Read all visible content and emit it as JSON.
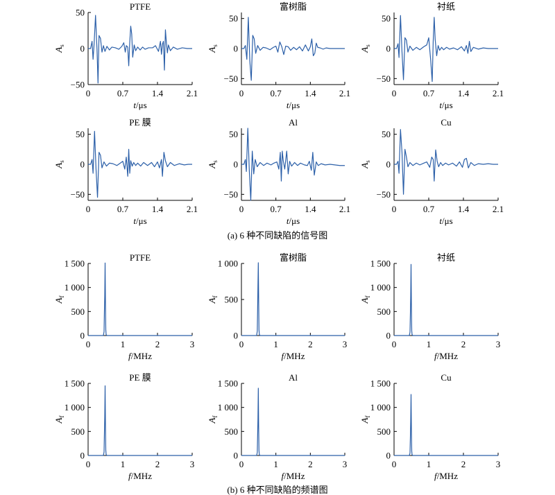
{
  "captions": {
    "time_domain": "(a) 6 种不同缺陷的信号图",
    "freq_domain": "(b) 6 种不同缺陷的频谱图"
  },
  "chart_data": [
    {
      "type": "line",
      "title": "PTFE",
      "xlabel_italic": "t",
      "xlabel_unit": "/μs",
      "ylabel_main": "A",
      "ylabel_sub": "s",
      "xlim": [
        0,
        2.1
      ],
      "ylim": [
        -50,
        50
      ],
      "xticks": [
        0,
        0.7,
        1.4,
        2.1
      ],
      "xtick_labels": [
        "0",
        "0.7",
        "1.4",
        "2.1"
      ],
      "yticks": [
        -50,
        0,
        50
      ],
      "ytick_labels": [
        "−50",
        "0",
        "50"
      ],
      "color": "#2b5fa8",
      "series": [
        {
          "x": [
            0,
            0.05,
            0.08,
            0.1,
            0.12,
            0.15,
            0.18,
            0.2,
            0.22,
            0.25,
            0.28,
            0.31,
            0.34,
            0.38,
            0.43,
            0.48,
            0.55,
            0.62,
            0.68,
            0.72,
            0.75,
            0.77,
            0.8,
            0.82,
            0.84,
            0.86,
            0.88,
            0.9,
            0.93,
            0.96,
            1.0,
            1.05,
            1.1,
            1.15,
            1.22,
            1.3,
            1.36,
            1.42,
            1.46,
            1.48,
            1.5,
            1.52,
            1.54,
            1.56,
            1.58,
            1.6,
            1.62,
            1.66,
            1.72,
            1.8,
            1.9,
            2.0,
            2.1
          ],
          "y": [
            0,
            0,
            10,
            -15,
            5,
            46,
            -2,
            -48,
            18,
            14,
            -5,
            4,
            -4,
            3,
            -2,
            2,
            1,
            -1,
            3,
            8,
            -5,
            4,
            2,
            -24,
            8,
            31,
            20,
            -12,
            5,
            -3,
            2,
            -2,
            2,
            -1,
            1,
            1,
            4,
            -4,
            10,
            -8,
            6,
            10,
            -30,
            26,
            8,
            -6,
            5,
            -3,
            2,
            -1,
            1,
            0,
            0
          ]
        }
      ]
    },
    {
      "type": "line",
      "title": "富树脂",
      "xlabel_italic": "t",
      "xlabel_unit": "/μs",
      "ylabel_main": "A",
      "ylabel_sub": "s",
      "xlim": [
        0,
        2.1
      ],
      "ylim": [
        -60,
        60
      ],
      "xticks": [
        0,
        0.7,
        1.4,
        2.1
      ],
      "xtick_labels": [
        "0",
        "0.7",
        "1.4",
        "2.1"
      ],
      "yticks": [
        -50,
        0,
        50
      ],
      "ytick_labels": [
        "−50",
        "0",
        "50"
      ],
      "color": "#2b5fa8",
      "series": [
        {
          "x": [
            0,
            0.05,
            0.08,
            0.11,
            0.14,
            0.17,
            0.2,
            0.23,
            0.26,
            0.29,
            0.33,
            0.38,
            0.44,
            0.5,
            0.58,
            0.65,
            0.7,
            0.74,
            0.78,
            0.82,
            0.86,
            0.9,
            0.95,
            1.0,
            1.06,
            1.12,
            1.18,
            1.24,
            1.3,
            1.36,
            1.4,
            1.43,
            1.46,
            1.49,
            1.52,
            1.55,
            1.6,
            1.66,
            1.72,
            1.8,
            1.9,
            2.0,
            2.1
          ],
          "y": [
            0,
            0,
            5,
            -18,
            52,
            -20,
            -53,
            22,
            16,
            -8,
            5,
            -3,
            2,
            1,
            -2,
            2,
            4,
            -6,
            11,
            3,
            -10,
            4,
            3,
            -3,
            2,
            -2,
            3,
            -4,
            6,
            -4,
            3,
            16,
            -12,
            -8,
            9,
            2,
            1,
            -1,
            1,
            0,
            0,
            0,
            0
          ]
        }
      ]
    },
    {
      "type": "line",
      "title": "衬纸",
      "xlabel_italic": "t",
      "xlabel_unit": "/μs",
      "ylabel_main": "A",
      "ylabel_sub": "s",
      "xlim": [
        0,
        2.1
      ],
      "ylim": [
        -60,
        60
      ],
      "xticks": [
        0,
        0.7,
        1.4,
        2.1
      ],
      "xtick_labels": [
        "0",
        "0.7",
        "1.4",
        "2.1"
      ],
      "yticks": [
        -50,
        0,
        50
      ],
      "ytick_labels": [
        "−50",
        "0",
        "50"
      ],
      "color": "#2b5fa8",
      "series": [
        {
          "x": [
            0,
            0.05,
            0.08,
            0.1,
            0.13,
            0.16,
            0.19,
            0.22,
            0.25,
            0.28,
            0.32,
            0.38,
            0.45,
            0.52,
            0.6,
            0.66,
            0.7,
            0.74,
            0.77,
            0.79,
            0.81,
            0.83,
            0.86,
            0.89,
            0.92,
            0.96,
            1.0,
            1.06,
            1.12,
            1.2,
            1.28,
            1.36,
            1.42,
            1.46,
            1.49,
            1.52,
            1.55,
            1.6,
            1.7,
            1.8,
            1.9,
            2.0,
            2.1
          ],
          "y": [
            0,
            0,
            8,
            -15,
            55,
            -5,
            -52,
            18,
            14,
            -6,
            4,
            -3,
            2,
            -2,
            3,
            6,
            18,
            -20,
            -55,
            12,
            52,
            15,
            -12,
            5,
            -3,
            2,
            -2,
            2,
            -1,
            1,
            -2,
            3,
            -4,
            5,
            -8,
            12,
            -5,
            2,
            -1,
            1,
            0,
            0,
            0
          ]
        }
      ]
    },
    {
      "type": "line",
      "title": "PE 膜",
      "xlabel_italic": "t",
      "xlabel_unit": "/μs",
      "ylabel_main": "A",
      "ylabel_sub": "s",
      "xlim": [
        0,
        2.1
      ],
      "ylim": [
        -60,
        60
      ],
      "xticks": [
        0,
        0.7,
        1.4,
        2.1
      ],
      "xtick_labels": [
        "0",
        "0.7",
        "1.4",
        "2.1"
      ],
      "yticks": [
        -50,
        0,
        50
      ],
      "ytick_labels": [
        "−50",
        "0",
        "50"
      ],
      "color": "#2b5fa8",
      "series": [
        {
          "x": [
            0,
            0.05,
            0.08,
            0.1,
            0.13,
            0.16,
            0.19,
            0.22,
            0.25,
            0.28,
            0.32,
            0.37,
            0.43,
            0.5,
            0.58,
            0.65,
            0.7,
            0.74,
            0.77,
            0.8,
            0.82,
            0.84,
            0.86,
            0.89,
            0.92,
            0.96,
            1.0,
            1.06,
            1.12,
            1.2,
            1.28,
            1.34,
            1.4,
            1.44,
            1.48,
            1.5,
            1.53,
            1.56,
            1.6,
            1.66,
            1.74,
            1.84,
            1.94,
            2.02,
            2.1
          ],
          "y": [
            0,
            0,
            8,
            -15,
            55,
            -8,
            -55,
            20,
            15,
            -6,
            4,
            -3,
            2,
            1,
            -2,
            2,
            5,
            -8,
            12,
            -20,
            25,
            -15,
            6,
            -3,
            3,
            -2,
            2,
            -3,
            3,
            -2,
            3,
            -4,
            4,
            -6,
            8,
            -20,
            20,
            6,
            -4,
            3,
            -2,
            1,
            -1,
            0,
            0
          ]
        }
      ]
    },
    {
      "type": "line",
      "title": "Al",
      "xlabel_italic": "t",
      "xlabel_unit": "/μs",
      "ylabel_main": "A",
      "ylabel_sub": "s",
      "xlim": [
        0,
        2.1
      ],
      "ylim": [
        -60,
        60
      ],
      "xticks": [
        0,
        0.7,
        1.4,
        2.1
      ],
      "xtick_labels": [
        "0",
        "0.7",
        "1.4",
        "2.1"
      ],
      "yticks": [
        -50,
        0,
        50
      ],
      "ytick_labels": [
        "−50",
        "0",
        "50"
      ],
      "color": "#2b5fa8",
      "series": [
        {
          "x": [
            0,
            0.05,
            0.08,
            0.1,
            0.13,
            0.16,
            0.19,
            0.22,
            0.25,
            0.28,
            0.32,
            0.38,
            0.45,
            0.52,
            0.6,
            0.66,
            0.72,
            0.76,
            0.79,
            0.81,
            0.83,
            0.85,
            0.88,
            0.92,
            0.95,
            0.98,
            1.02,
            1.08,
            1.14,
            1.2,
            1.28,
            1.34,
            1.38,
            1.42,
            1.45,
            1.48,
            1.52,
            1.56,
            1.62,
            1.7,
            1.8,
            1.9,
            2.0,
            2.1
          ],
          "y": [
            0,
            0,
            8,
            -12,
            60,
            -10,
            -60,
            22,
            -16,
            8,
            -4,
            3,
            -2,
            2,
            -1,
            2,
            4,
            -8,
            20,
            -28,
            22,
            6,
            -8,
            22,
            -16,
            5,
            -3,
            3,
            -2,
            2,
            -1,
            -2,
            5,
            -10,
            20,
            -18,
            4,
            -2,
            1,
            -1,
            0,
            -1,
            -2,
            -2
          ]
        }
      ]
    },
    {
      "type": "line",
      "title": "Cu",
      "xlabel_italic": "t",
      "xlabel_unit": "/μs",
      "ylabel_main": "A",
      "ylabel_sub": "s",
      "xlim": [
        0,
        2.1
      ],
      "ylim": [
        -60,
        60
      ],
      "xticks": [
        0,
        0.7,
        1.4,
        2.1
      ],
      "xtick_labels": [
        "0",
        "0.7",
        "1.4",
        "2.1"
      ],
      "yticks": [
        -50,
        0,
        50
      ],
      "ytick_labels": [
        "−50",
        "0",
        "50"
      ],
      "color": "#2b5fa8",
      "series": [
        {
          "x": [
            0,
            0.05,
            0.08,
            0.1,
            0.13,
            0.16,
            0.19,
            0.22,
            0.25,
            0.28,
            0.32,
            0.38,
            0.45,
            0.52,
            0.6,
            0.66,
            0.72,
            0.76,
            0.79,
            0.81,
            0.84,
            0.87,
            0.9,
            0.94,
            0.98,
            1.04,
            1.1,
            1.18,
            1.26,
            1.32,
            1.38,
            1.42,
            1.46,
            1.5,
            1.55,
            1.62,
            1.7,
            1.8,
            1.9,
            2.0,
            2.1
          ],
          "y": [
            0,
            0,
            5,
            -15,
            58,
            20,
            -50,
            25,
            12,
            -4,
            3,
            -2,
            2,
            -1,
            2,
            4,
            -5,
            12,
            8,
            -28,
            24,
            5,
            -4,
            3,
            -2,
            2,
            -1,
            2,
            -3,
            4,
            -5,
            8,
            10,
            -6,
            3,
            -2,
            1,
            0,
            1,
            0,
            0
          ]
        }
      ]
    },
    {
      "type": "line",
      "title": "PTFE",
      "xlabel_italic": "f",
      "xlabel_unit": "/MHz",
      "ylabel_main": "A",
      "ylabel_sub": "f",
      "xlim": [
        0,
        3
      ],
      "ylim": [
        0,
        1500
      ],
      "xticks": [
        0,
        1,
        2,
        3
      ],
      "xtick_labels": [
        "0",
        "1",
        "2",
        "3"
      ],
      "yticks": [
        0,
        500,
        1000,
        1500
      ],
      "ytick_labels": [
        "0",
        "500",
        "1 000",
        "1 500"
      ],
      "color": "#2b5fa8",
      "series": [
        {
          "x": [
            0,
            0.44,
            0.46,
            0.47,
            0.48,
            0.49,
            0.5,
            0.51,
            0.52,
            0.54,
            3.0
          ],
          "y": [
            0,
            0,
            80,
            500,
            820,
            1510,
            700,
            120,
            20,
            0,
            0
          ]
        }
      ]
    },
    {
      "type": "line",
      "title": "富树脂",
      "xlabel_italic": "f",
      "xlabel_unit": "/MHz",
      "ylabel_main": "A",
      "ylabel_sub": "f",
      "xlim": [
        0,
        3
      ],
      "ylim": [
        0,
        1000
      ],
      "xticks": [
        0,
        1,
        2,
        3
      ],
      "xtick_labels": [
        "0",
        "1",
        "2",
        "3"
      ],
      "yticks": [
        0,
        500,
        1000
      ],
      "ytick_labels": [
        "0",
        "500",
        "1 000"
      ],
      "color": "#2b5fa8",
      "series": [
        {
          "x": [
            0,
            0.44,
            0.46,
            0.47,
            0.48,
            0.49,
            0.5,
            0.51,
            0.52,
            0.54,
            3.0
          ],
          "y": [
            0,
            0,
            60,
            350,
            700,
            1010,
            520,
            80,
            15,
            0,
            0
          ]
        }
      ]
    },
    {
      "type": "line",
      "title": "衬纸",
      "xlabel_italic": "f",
      "xlabel_unit": "/MHz",
      "ylabel_main": "A",
      "ylabel_sub": "f",
      "xlim": [
        0,
        3
      ],
      "ylim": [
        0,
        1500
      ],
      "xticks": [
        0,
        1,
        2,
        3
      ],
      "xtick_labels": [
        "0",
        "1",
        "2",
        "3"
      ],
      "yticks": [
        0,
        500,
        1000,
        1500
      ],
      "ytick_labels": [
        "0",
        "500",
        "1 000",
        "1 500"
      ],
      "color": "#2b5fa8",
      "series": [
        {
          "x": [
            0,
            0.44,
            0.46,
            0.47,
            0.48,
            0.49,
            0.5,
            0.51,
            0.52,
            0.54,
            3.0
          ],
          "y": [
            0,
            0,
            70,
            420,
            800,
            1480,
            640,
            100,
            20,
            0,
            0
          ]
        }
      ]
    },
    {
      "type": "line",
      "title": "PE 膜",
      "xlabel_italic": "f",
      "xlabel_unit": "/MHz",
      "ylabel_main": "A",
      "ylabel_sub": "f",
      "xlim": [
        0,
        3
      ],
      "ylim": [
        0,
        1500
      ],
      "xticks": [
        0,
        1,
        2,
        3
      ],
      "xtick_labels": [
        "0",
        "1",
        "2",
        "3"
      ],
      "yticks": [
        0,
        500,
        1000,
        1500
      ],
      "ytick_labels": [
        "0",
        "500",
        "1 000",
        "1 500"
      ],
      "color": "#2b5fa8",
      "series": [
        {
          "x": [
            0,
            0.44,
            0.46,
            0.47,
            0.48,
            0.49,
            0.5,
            0.51,
            0.52,
            0.54,
            3.0
          ],
          "y": [
            0,
            0,
            70,
            450,
            800,
            1450,
            650,
            110,
            20,
            0,
            0
          ]
        }
      ]
    },
    {
      "type": "line",
      "title": "Al",
      "xlabel_italic": "f",
      "xlabel_unit": "/MHz",
      "ylabel_main": "A",
      "ylabel_sub": "f",
      "xlim": [
        0,
        3
      ],
      "ylim": [
        0,
        1500
      ],
      "xticks": [
        0,
        1,
        2,
        3
      ],
      "xtick_labels": [
        "0",
        "1",
        "2",
        "3"
      ],
      "yticks": [
        0,
        500,
        1000,
        1500
      ],
      "ytick_labels": [
        "0",
        "500",
        "1 000",
        "1 500"
      ],
      "color": "#2b5fa8",
      "series": [
        {
          "x": [
            0,
            0.44,
            0.46,
            0.47,
            0.48,
            0.49,
            0.5,
            0.51,
            0.52,
            0.54,
            3.0
          ],
          "y": [
            0,
            0,
            60,
            400,
            760,
            1400,
            620,
            100,
            18,
            0,
            0
          ]
        }
      ]
    },
    {
      "type": "line",
      "title": "Cu",
      "xlabel_italic": "f",
      "xlabel_unit": "/MHz",
      "ylabel_main": "A",
      "ylabel_sub": "f",
      "xlim": [
        0,
        3
      ],
      "ylim": [
        0,
        1500
      ],
      "xticks": [
        0,
        1,
        2,
        3
      ],
      "xtick_labels": [
        "0",
        "1",
        "2",
        "3"
      ],
      "yticks": [
        0,
        500,
        1000,
        1500
      ],
      "ytick_labels": [
        "0",
        "500",
        "1 000",
        "1 500"
      ],
      "color": "#2b5fa8",
      "series": [
        {
          "x": [
            0,
            0.44,
            0.46,
            0.47,
            0.48,
            0.49,
            0.5,
            0.51,
            0.52,
            0.54,
            3.0
          ],
          "y": [
            0,
            0,
            50,
            350,
            700,
            1270,
            560,
            90,
            15,
            0,
            0
          ]
        }
      ]
    }
  ]
}
